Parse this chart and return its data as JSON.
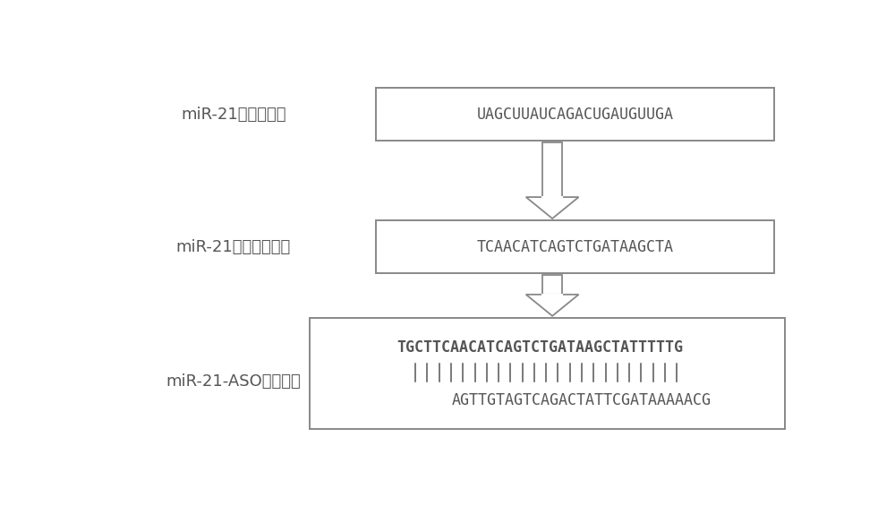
{
  "background_color": "#ffffff",
  "label1": "miR-21成熟体序列",
  "label2": "miR-21反义互补序列",
  "label3": "miR-21-ASO正反义锤",
  "seq1": "UAGCUUAUCAGACUGAUGUUGA",
  "seq2": "TCAACATCAGTCTGATAAGCTA",
  "seq3_top": "TGCTTCAACATCAGTCTGATAAGCTATTTTTG",
  "seq3_bottom": "AGTTGTAGTCAGACTATTCGATAAAAACG",
  "text_color": "#555555",
  "edge_color": "#888888",
  "n_bars": 23,
  "seq_fontsize": 12,
  "label_fontsize": 13
}
